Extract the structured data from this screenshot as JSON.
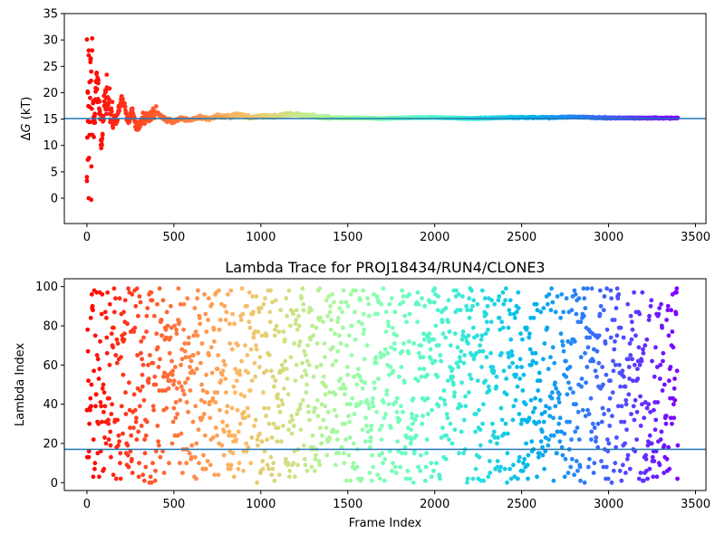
{
  "figure": {
    "description_free": true
  },
  "chart_data": [
    {
      "type": "scatter",
      "title": "",
      "xlabel": "",
      "ylabel": "ΔG (kT)",
      "xlim": [
        -130,
        3560
      ],
      "ylim": [
        -4.8,
        35
      ],
      "xticks": [
        0,
        500,
        1000,
        1500,
        2000,
        2500,
        3000,
        3500
      ],
      "yticks": [
        0,
        5,
        10,
        15,
        20,
        25,
        30,
        35
      ],
      "hline": 15.1,
      "hline_color": "#1f77b4",
      "colormap": "rainbow",
      "n_frames": 3400,
      "series_summary": "ΔG running estimate vs frame; early frames scatter between 0 and 30 kT, converging to ~15.1 kT after ~1000 frames",
      "points_early": [
        [
          0,
          30.1
        ],
        [
          10,
          28.0
        ],
        [
          20,
          26.3
        ],
        [
          30,
          30.3
        ],
        [
          5,
          20.0
        ],
        [
          15,
          22.0
        ],
        [
          25,
          24.0
        ],
        [
          35,
          18.0
        ],
        [
          0,
          4.0
        ],
        [
          5,
          7.3
        ],
        [
          10,
          0.0
        ],
        [
          25,
          -0.3
        ],
        [
          15,
          12.0
        ],
        [
          30,
          12.0
        ],
        [
          40,
          14.3
        ],
        [
          45,
          16.0
        ],
        [
          50,
          20.2
        ],
        [
          55,
          23.5
        ],
        [
          60,
          18.2
        ],
        [
          65,
          21.8
        ],
        [
          70,
          17.0
        ],
        [
          75,
          16.0
        ],
        [
          80,
          11.0
        ],
        [
          85,
          10.0
        ],
        [
          90,
          12.0
        ],
        [
          95,
          15.0
        ],
        [
          100,
          17.5
        ],
        [
          105,
          20.0
        ],
        [
          110,
          19.0
        ],
        [
          115,
          21.0
        ],
        [
          120,
          18.0
        ],
        [
          130,
          17.2
        ],
        [
          140,
          16.0
        ],
        [
          150,
          14.5
        ],
        [
          160,
          15.5
        ],
        [
          170,
          14.0
        ],
        [
          180,
          16.5
        ],
        [
          190,
          17.5
        ],
        [
          200,
          19.0
        ],
        [
          210,
          18.0
        ],
        [
          220,
          16.8
        ],
        [
          230,
          15.0
        ],
        [
          240,
          14.2
        ],
        [
          250,
          15.7
        ],
        [
          260,
          16.5
        ],
        [
          270,
          15.0
        ],
        [
          280,
          13.8
        ],
        [
          290,
          13.2
        ],
        [
          300,
          13.6
        ],
        [
          320,
          14.5
        ],
        [
          340,
          15.2
        ],
        [
          360,
          15.6
        ],
        [
          380,
          16.0
        ],
        [
          400,
          16.1
        ],
        [
          420,
          15.7
        ],
        [
          440,
          15.3
        ],
        [
          460,
          14.9
        ],
        [
          480,
          14.7
        ],
        [
          500,
          14.5
        ],
        [
          520,
          14.8
        ],
        [
          540,
          15.2
        ],
        [
          560,
          15.0
        ],
        [
          600,
          14.8
        ],
        [
          650,
          15.4
        ],
        [
          700,
          15.0
        ],
        [
          750,
          15.6
        ],
        [
          800,
          15.5
        ],
        [
          850,
          15.8
        ],
        [
          900,
          15.7
        ],
        [
          950,
          15.3
        ],
        [
          1000,
          15.6
        ],
        [
          1050,
          15.5
        ],
        [
          1100,
          15.6
        ],
        [
          1150,
          15.9
        ],
        [
          1200,
          15.9
        ],
        [
          1250,
          15.7
        ],
        [
          1300,
          15.6
        ],
        [
          1350,
          15.4
        ],
        [
          1400,
          15.3
        ],
        [
          1500,
          15.2
        ],
        [
          1600,
          15.2
        ],
        [
          1700,
          15.1
        ],
        [
          1800,
          15.2
        ],
        [
          1900,
          15.3
        ],
        [
          2000,
          15.3
        ],
        [
          2100,
          15.2
        ],
        [
          2200,
          15.1
        ],
        [
          2300,
          15.2
        ],
        [
          2400,
          15.3
        ],
        [
          2500,
          15.3
        ],
        [
          2600,
          15.3
        ],
        [
          2700,
          15.3
        ],
        [
          2800,
          15.4
        ],
        [
          2900,
          15.3
        ],
        [
          3000,
          15.2
        ],
        [
          3100,
          15.2
        ],
        [
          3200,
          15.2
        ],
        [
          3300,
          15.2
        ],
        [
          3400,
          15.2
        ]
      ]
    },
    {
      "type": "scatter",
      "title": "Lambda Trace for PROJ18434/RUN4/CLONE3",
      "xlabel": "Frame Index",
      "ylabel": "Lambda Index",
      "xlim": [
        -130,
        3560
      ],
      "ylim": [
        -4,
        104
      ],
      "xticks": [
        0,
        500,
        1000,
        1500,
        2000,
        2500,
        3000,
        3500
      ],
      "yticks": [
        0,
        20,
        40,
        60,
        80,
        100
      ],
      "hline": 17,
      "hline_color": "#1f77b4",
      "colormap": "rainbow",
      "n_frames": 3400,
      "lambda_range": [
        0,
        99
      ],
      "series_summary": "Lambda index (0–99) visited at each frame; points uniformly scattered across the full range, colored by frame index"
    }
  ]
}
